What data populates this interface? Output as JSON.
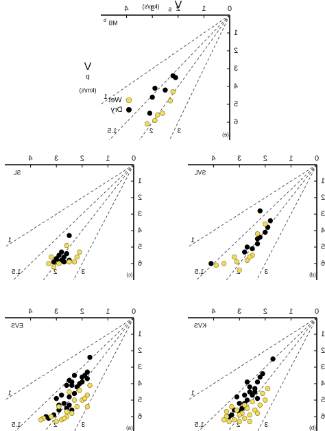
{
  "figure": {
    "x_axis_label": "V",
    "x_axis_subscript": "s",
    "x_axis_unit": "(km/s)",
    "y_axis_label": "V",
    "y_axis_subscript": "p",
    "y_axis_unit": "(km/s)",
    "legend": {
      "dry": "Dry",
      "wet": "Wet"
    },
    "colors": {
      "dry": "#000000",
      "wet": "#f2dc5d",
      "wet_edge": "#7a6a1a",
      "ref_line": "#444444"
    }
  },
  "chart_data": [
    {
      "type": "scatter",
      "panel": "e",
      "region_label": "MB",
      "region_label_sub": "b",
      "xlim": [
        0,
        5
      ],
      "ylim": [
        0,
        7
      ],
      "x_ticks": [
        0,
        1,
        2,
        3,
        4
      ],
      "y_ticks": [
        0,
        1,
        2,
        3,
        4,
        5,
        6
      ],
      "ref_lines": [
        {
          "label": "1",
          "ratio": 1
        },
        {
          "label": "1.5",
          "ratio": 1.5
        },
        {
          "label": "2",
          "ratio": 2
        },
        {
          "label": "3",
          "ratio": 3
        }
      ],
      "series": [
        {
          "name": "Dry",
          "points": [
            [
              2.2,
              3.4
            ],
            [
              2.1,
              3.5
            ],
            [
              2.5,
              4.2
            ],
            [
              3.0,
              4.6
            ],
            [
              3.1,
              5.5
            ],
            [
              2.9,
              4.1
            ]
          ]
        },
        {
          "name": "Wet",
          "points": [
            [
              2.2,
              4.3
            ],
            [
              2.6,
              5.5
            ],
            [
              2.8,
              5.6
            ],
            [
              2.9,
              5.9
            ],
            [
              3.2,
              6.1
            ],
            [
              2.3,
              4.8
            ]
          ]
        }
      ]
    },
    {
      "type": "scatter",
      "panel": "c",
      "region_label": "SL",
      "xlim": [
        0,
        5
      ],
      "ylim": [
        0,
        7
      ],
      "x_ticks": [
        0,
        1,
        2,
        3,
        4
      ],
      "y_ticks": [
        0,
        1,
        2,
        3,
        4,
        5,
        6
      ],
      "ref_lines": [
        {
          "label": "1",
          "ratio": 1
        },
        {
          "label": "1.5",
          "ratio": 1.5
        },
        {
          "label": "2",
          "ratio": 2
        },
        {
          "label": "3",
          "ratio": 3
        }
      ],
      "series": [
        {
          "name": "Dry",
          "points": [
            [
              2.5,
              4.3
            ],
            [
              2.6,
              5.4
            ],
            [
              2.7,
              5.6
            ],
            [
              2.8,
              5.8
            ],
            [
              2.9,
              5.5
            ],
            [
              3.0,
              5.7
            ],
            [
              2.7,
              5.9
            ],
            [
              2.8,
              5.3
            ],
            [
              3.1,
              5.9
            ],
            [
              2.5,
              5.8
            ],
            [
              2.9,
              5.9
            ]
          ]
        },
        {
          "name": "Wet",
          "points": [
            [
              2.1,
              5.3
            ],
            [
              2.2,
              5.6
            ],
            [
              2.3,
              5.9
            ],
            [
              3.2,
              5.6
            ],
            [
              3.3,
              6.0
            ],
            [
              2.9,
              6.0
            ],
            [
              2.6,
              4.9
            ],
            [
              3.1,
              6.2
            ],
            [
              2.5,
              5.9
            ]
          ]
        }
      ]
    },
    {
      "type": "scatter",
      "panel": "a",
      "region_label": "EVS",
      "xlim": [
        0,
        5
      ],
      "ylim": [
        0,
        7
      ],
      "x_ticks": [
        0,
        1,
        2,
        3,
        4
      ],
      "y_ticks": [
        0,
        1,
        2,
        3,
        4,
        5,
        6
      ],
      "ref_lines": [
        {
          "label": "1",
          "ratio": 1
        },
        {
          "label": "1.5",
          "ratio": 1.5
        },
        {
          "label": "2",
          "ratio": 2
        },
        {
          "label": "3",
          "ratio": 3
        }
      ],
      "series": [
        {
          "name": "Dry",
          "points": [
            [
              1.7,
              2.4
            ],
            [
              1.8,
              3.3
            ],
            [
              1.9,
              3.5
            ],
            [
              2.0,
              3.6
            ],
            [
              1.8,
              3.7
            ],
            [
              2.3,
              3.5
            ],
            [
              2.4,
              3.9
            ],
            [
              2.5,
              3.8
            ],
            [
              2.1,
              4.0
            ],
            [
              2.6,
              4.1
            ],
            [
              2.3,
              4.6
            ],
            [
              2.5,
              4.8
            ],
            [
              2.8,
              4.7
            ],
            [
              2.7,
              5.2
            ],
            [
              2.5,
              5.3
            ],
            [
              2.6,
              5.5
            ],
            [
              2.9,
              5.6
            ],
            [
              3.1,
              5.9
            ],
            [
              3.3,
              6.1
            ],
            [
              2.9,
              5.3
            ],
            [
              2.4,
              5.6
            ],
            [
              2.2,
              4.2
            ],
            [
              3.4,
              6.0
            ],
            [
              3.0,
              4.9
            ],
            [
              2.4,
              4.1
            ],
            [
              2.0,
              3.9
            ]
          ]
        },
        {
          "name": "Wet",
          "points": [
            [
              1.7,
              4.1
            ],
            [
              1.8,
              4.7
            ],
            [
              1.8,
              5.4
            ],
            [
              2.0,
              5.0
            ],
            [
              2.2,
              5.4
            ],
            [
              2.4,
              5.8
            ],
            [
              2.6,
              6.0
            ],
            [
              2.8,
              6.2
            ],
            [
              3.0,
              6.3
            ],
            [
              3.2,
              6.0
            ],
            [
              2.7,
              6.1
            ],
            [
              2.9,
              5.4
            ],
            [
              2.5,
              4.5
            ],
            [
              3.5,
              6.1
            ],
            [
              3.6,
              6.2
            ],
            [
              2.1,
              4.4
            ],
            [
              2.3,
              5.0
            ],
            [
              2.6,
              5.7
            ],
            [
              1.9,
              4.9
            ]
          ]
        }
      ]
    },
    {
      "type": "scatter",
      "panel": "d",
      "region_label": "SVL",
      "xlim": [
        0,
        5
      ],
      "ylim": [
        0,
        7
      ],
      "x_ticks": [
        0,
        1,
        2,
        3,
        4
      ],
      "y_ticks": [
        0,
        1,
        2,
        3,
        4,
        5,
        6
      ],
      "ref_lines": [
        {
          "label": "1",
          "ratio": 1
        },
        {
          "label": "1.5",
          "ratio": 1.5
        },
        {
          "label": "2",
          "ratio": 2
        },
        {
          "label": "3",
          "ratio": 3
        }
      ],
      "series": [
        {
          "name": "Dry",
          "points": [
            [
              1.8,
              3.4
            ],
            [
              2.2,
              2.8
            ],
            [
              1.9,
              3.8
            ],
            [
              2.0,
              4.1
            ],
            [
              2.2,
              4.4
            ],
            [
              2.3,
              4.8
            ],
            [
              2.5,
              5.1
            ],
            [
              2.7,
              5.0
            ],
            [
              2.8,
              5.3
            ],
            [
              2.3,
              4.5
            ],
            [
              4.1,
              6.0
            ]
          ]
        },
        {
          "name": "Wet",
          "points": [
            [
              2.0,
              3.6
            ],
            [
              2.5,
              5.5
            ],
            [
              2.7,
              5.8
            ],
            [
              3.2,
              5.6
            ],
            [
              3.6,
              6.0
            ],
            [
              3.9,
              6.1
            ],
            [
              2.3,
              4.2
            ],
            [
              3.1,
              5.9
            ],
            [
              3.0,
              6.4
            ],
            [
              2.6,
              5.6
            ]
          ]
        }
      ]
    },
    {
      "type": "scatter",
      "panel": "b",
      "region_label": "KVS",
      "xlim": [
        0,
        5
      ],
      "ylim": [
        0,
        7
      ],
      "x_ticks": [
        0,
        1,
        2,
        3,
        4
      ],
      "y_ticks": [
        0,
        1,
        2,
        3,
        4,
        5,
        6
      ],
      "ref_lines": [
        {
          "label": "1",
          "ratio": 1
        },
        {
          "label": "1.5",
          "ratio": 1.5
        },
        {
          "label": "2",
          "ratio": 2
        },
        {
          "label": "3",
          "ratio": 3
        }
      ],
      "series": [
        {
          "name": "Dry",
          "points": [
            [
              1.7,
              2.5
            ],
            [
              2.1,
              3.4
            ],
            [
              2.2,
              3.6
            ],
            [
              2.3,
              3.9
            ],
            [
              2.4,
              4.3
            ],
            [
              2.6,
              4.5
            ],
            [
              2.5,
              4.7
            ],
            [
              2.7,
              5.0
            ],
            [
              2.8,
              5.2
            ],
            [
              2.9,
              5.5
            ],
            [
              3.0,
              5.7
            ],
            [
              3.2,
              5.6
            ],
            [
              3.3,
              5.9
            ],
            [
              3.4,
              6.0
            ],
            [
              2.8,
              4.7
            ],
            [
              2.6,
              4.2
            ],
            [
              2.3,
              4.9
            ],
            [
              3.1,
              4.8
            ],
            [
              2.4,
              4.5
            ],
            [
              2.7,
              3.9
            ],
            [
              3.0,
              5.2
            ]
          ]
        },
        {
          "name": "Wet",
          "points": [
            [
              1.9,
              4.3
            ],
            [
              2.0,
              5.0
            ],
            [
              2.2,
              5.3
            ],
            [
              2.4,
              5.6
            ],
            [
              2.6,
              5.9
            ],
            [
              2.8,
              6.1
            ],
            [
              3.0,
              6.3
            ],
            [
              3.2,
              6.2
            ],
            [
              3.4,
              6.3
            ],
            [
              3.5,
              6.0
            ],
            [
              3.6,
              6.2
            ],
            [
              2.7,
              5.5
            ],
            [
              2.9,
              5.8
            ],
            [
              3.1,
              5.6
            ],
            [
              2.5,
              5.1
            ],
            [
              2.1,
              4.6
            ],
            [
              3.3,
              5.4
            ],
            [
              2.6,
              6.3
            ],
            [
              2.3,
              5.8
            ],
            [
              3.5,
              5.7
            ],
            [
              3.0,
              5.9
            ],
            [
              2.8,
              5.3
            ]
          ]
        }
      ]
    }
  ]
}
